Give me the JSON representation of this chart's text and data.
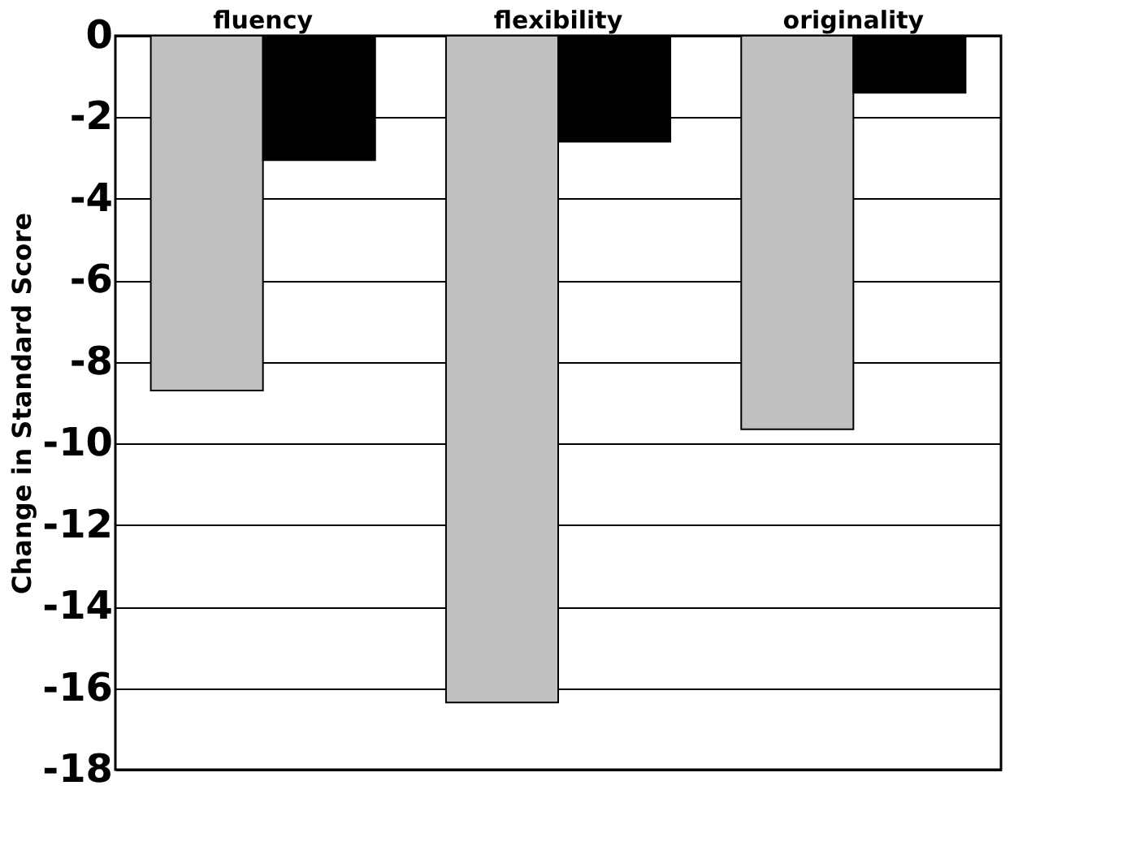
{
  "chart_data": {
    "type": "bar",
    "ylabel": "Change in Standard Score",
    "categories": [
      "fluency",
      "flexibility",
      "originality"
    ],
    "series": [
      {
        "color": "#c0c0c0",
        "values": [
          -8.7,
          -16.35,
          -9.65
        ]
      },
      {
        "color": "#000000",
        "values": [
          -3.05,
          -2.6,
          -1.4
        ]
      }
    ],
    "ylim": [
      -18,
      0
    ],
    "yticks": [
      0,
      -2,
      -4,
      -6,
      -8,
      -10,
      -12,
      -14,
      -16,
      -18
    ],
    "grid": "y"
  }
}
